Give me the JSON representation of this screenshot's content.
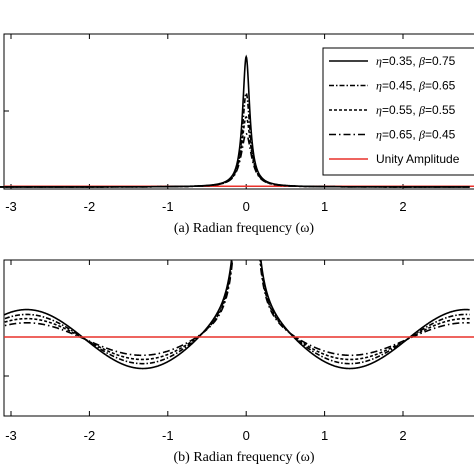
{
  "chart_data": [
    {
      "type": "line",
      "caption": "(a) Radian frequency (ω)",
      "xlim": [
        -3.2,
        2.85
      ],
      "ylim": [
        0,
        1
      ],
      "xticks": [
        -3,
        -2,
        -1,
        0,
        1,
        2
      ],
      "xtick_labels": [
        "-3",
        "-2",
        "-1",
        "0",
        "1",
        "2"
      ],
      "grid": false,
      "legend_position": "top-right",
      "legend": [
        {
          "eta": "0.35",
          "beta": "0.75",
          "style": "solid"
        },
        {
          "eta": "0.45",
          "beta": "0.65",
          "style": "dashdot-dense"
        },
        {
          "eta": "0.55",
          "beta": "0.55",
          "style": "dashdot"
        },
        {
          "eta": "0.65",
          "beta": "0.45",
          "style": "dashdot-long"
        },
        {
          "label": "Unity Amplitude",
          "color": "#e8302a",
          "style": "solid"
        }
      ],
      "series": [
        {
          "peak": 0.93,
          "width": 0.055,
          "dash": "none"
        },
        {
          "peak": 0.67,
          "width": 0.06,
          "dash": "5,2,1.5,2"
        },
        {
          "peak": 0.5,
          "width": 0.07,
          "dash": "3,2"
        },
        {
          "peak": 0.38,
          "width": 0.08,
          "dash": "7,3,1.5,3"
        }
      ],
      "unity_y": 0.005
    },
    {
      "type": "line",
      "caption": "(b) Radian frequency (ω)",
      "xlim": [
        -3.2,
        2.85
      ],
      "ylim": [
        0.55,
        1.95
      ],
      "xticks": [
        -3,
        -2,
        -1,
        0,
        1,
        2
      ],
      "xtick_labels": [
        "-3",
        "-2",
        "-1",
        "0",
        "1",
        "2"
      ],
      "grid": false,
      "series": [
        {
          "a": 0.215,
          "dash": "none"
        },
        {
          "a": 0.18,
          "dash": "5,2,1.5,2"
        },
        {
          "a": 0.15,
          "dash": "3,2"
        },
        {
          "a": 0.12,
          "dash": "7,3,1.5,3"
        }
      ],
      "unity_y": 1.0
    }
  ],
  "colors": {
    "curves": "#000000",
    "unity": "#e8302a"
  }
}
